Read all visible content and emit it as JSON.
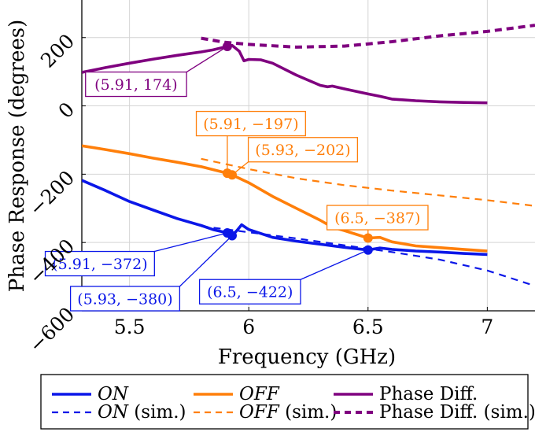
{
  "chart_data": {
    "type": "line",
    "title": "",
    "xlabel": "Frequency (GHz)",
    "ylabel": "Phase Response (degrees)",
    "xlim": [
      5.3,
      7.2
    ],
    "ylim": [
      -600,
      310
    ],
    "x_ticks": [
      5.5,
      6,
      6.5,
      7
    ],
    "x_tick_labels": [
      "5.5",
      "6",
      "6.5",
      "7"
    ],
    "y_ticks": [
      -600,
      -400,
      -200,
      0,
      200
    ],
    "y_tick_labels": [
      "−600",
      "−400",
      "−200",
      "0",
      "200"
    ],
    "grid": true,
    "colors": {
      "on": "#0b17e8",
      "off": "#ff7f0a",
      "diff": "#7f007f"
    },
    "series": [
      {
        "id": "on",
        "name": "ON",
        "style": "solid",
        "color": "#0b17e8",
        "x": [
          5.3,
          5.4,
          5.5,
          5.6,
          5.7,
          5.8,
          5.85,
          5.91,
          5.93,
          5.95,
          5.97,
          6.0,
          6.1,
          6.2,
          6.3,
          6.4,
          6.5,
          6.55,
          6.6,
          6.7,
          6.8,
          6.9,
          7.0
        ],
        "y": [
          -218,
          -248,
          -280,
          -305,
          -330,
          -350,
          -362,
          -372,
          -380,
          -365,
          -348,
          -362,
          -385,
          -396,
          -405,
          -414,
          -422,
          -416,
          -420,
          -425,
          -428,
          -432,
          -435
        ]
      },
      {
        "id": "off",
        "name": "OFF",
        "style": "solid",
        "color": "#ff7f0a",
        "x": [
          5.3,
          5.4,
          5.5,
          5.6,
          5.7,
          5.8,
          5.91,
          5.93,
          6.0,
          6.1,
          6.2,
          6.3,
          6.35,
          6.4,
          6.5,
          6.55,
          6.6,
          6.7,
          6.8,
          6.9,
          7.0
        ],
        "y": [
          -117,
          -128,
          -140,
          -153,
          -165,
          -178,
          -197,
          -202,
          -225,
          -265,
          -300,
          -335,
          -355,
          -365,
          -387,
          -385,
          -398,
          -410,
          -415,
          -420,
          -425
        ]
      },
      {
        "id": "diff",
        "name": "Phase Diff.",
        "style": "solid",
        "color": "#7f007f",
        "x": [
          5.3,
          5.4,
          5.5,
          5.6,
          5.7,
          5.8,
          5.85,
          5.91,
          5.93,
          5.96,
          5.98,
          6.0,
          6.05,
          6.1,
          6.2,
          6.3,
          6.33,
          6.35,
          6.4,
          6.5,
          6.55,
          6.6,
          6.7,
          6.8,
          6.9,
          7.0
        ],
        "y": [
          98,
          112,
          125,
          137,
          148,
          158,
          164,
          174,
          177,
          160,
          132,
          136,
          135,
          125,
          90,
          60,
          56,
          58,
          50,
          35,
          28,
          20,
          15,
          12,
          10,
          9
        ]
      },
      {
        "id": "on-sim",
        "name": "ON (sim.)",
        "style": "dashed",
        "color": "#0b17e8",
        "x": [
          5.8,
          6.0,
          6.2,
          6.4,
          6.6,
          6.8,
          7.0,
          7.2
        ],
        "y": [
          -352,
          -370,
          -388,
          -408,
          -428,
          -450,
          -482,
          -527
        ]
      },
      {
        "id": "off-sim",
        "name": "OFF (sim.)",
        "style": "dashed",
        "color": "#ff7f0a",
        "x": [
          5.8,
          6.0,
          6.2,
          6.4,
          6.6,
          6.8,
          7.0,
          7.2
        ],
        "y": [
          -155,
          -185,
          -212,
          -232,
          -248,
          -262,
          -276,
          -293
        ]
      },
      {
        "id": "diff-sim",
        "name": "Phase Diff. (sim.)",
        "style": "dashed",
        "color": "#7f007f",
        "x": [
          5.8,
          5.9,
          6.0,
          6.2,
          6.4,
          6.6,
          6.8,
          7.0,
          7.2
        ],
        "y": [
          198,
          186,
          180,
          172,
          175,
          188,
          205,
          218,
          236
        ]
      }
    ],
    "markers": [
      {
        "series": "diff",
        "x": 5.91,
        "y": 174,
        "color": "#7f007f"
      },
      {
        "series": "off",
        "x": 5.91,
        "y": -197,
        "color": "#ff7f0a"
      },
      {
        "series": "off",
        "x": 5.93,
        "y": -202,
        "color": "#ff7f0a"
      },
      {
        "series": "off",
        "x": 6.5,
        "y": -387,
        "color": "#ff7f0a"
      },
      {
        "series": "on",
        "x": 5.91,
        "y": -372,
        "color": "#0b17e8"
      },
      {
        "series": "on",
        "x": 5.93,
        "y": -380,
        "color": "#0b17e8"
      },
      {
        "series": "on",
        "x": 6.5,
        "y": -422,
        "color": "#0b17e8"
      }
    ],
    "annotations": [
      {
        "text": "(5.91, 174)",
        "color": "#7f007f",
        "x": 5.91,
        "y": 174,
        "placement": "below-left"
      },
      {
        "text": "(5.91, −197)",
        "color": "#ff7f0a",
        "x": 5.91,
        "y": -197,
        "placement": "above-right"
      },
      {
        "text": "(5.93, −202)",
        "color": "#ff7f0a",
        "x": 5.93,
        "y": -202,
        "placement": "right"
      },
      {
        "text": "(6.5, −387)",
        "color": "#ff7f0a",
        "x": 6.5,
        "y": -387,
        "placement": "above-right"
      },
      {
        "text": "(5.91, −372)",
        "color": "#0b17e8",
        "x": 5.91,
        "y": -372,
        "placement": "below-left"
      },
      {
        "text": "(5.93, −380)",
        "color": "#0b17e8",
        "x": 5.93,
        "y": -380,
        "placement": "below"
      },
      {
        "text": "(6.5, −422)",
        "color": "#0b17e8",
        "x": 6.5,
        "y": -422,
        "placement": "below-left"
      }
    ],
    "legend": {
      "placement": "bottom",
      "entries": [
        {
          "series": "on",
          "label": "ON",
          "suffix": "",
          "italic": true
        },
        {
          "series": "off",
          "label": "OFF",
          "suffix": "",
          "italic": true
        },
        {
          "series": "diff",
          "label": "Phase Diff.",
          "suffix": "",
          "italic": false
        },
        {
          "series": "on-sim",
          "label": "ON",
          "suffix": " (sim.)",
          "italic": true
        },
        {
          "series": "off-sim",
          "label": "OFF",
          "suffix": " (sim.)",
          "italic": true
        },
        {
          "series": "diff-sim",
          "label": "Phase Diff. (sim.)",
          "suffix": "",
          "italic": false
        }
      ]
    }
  }
}
